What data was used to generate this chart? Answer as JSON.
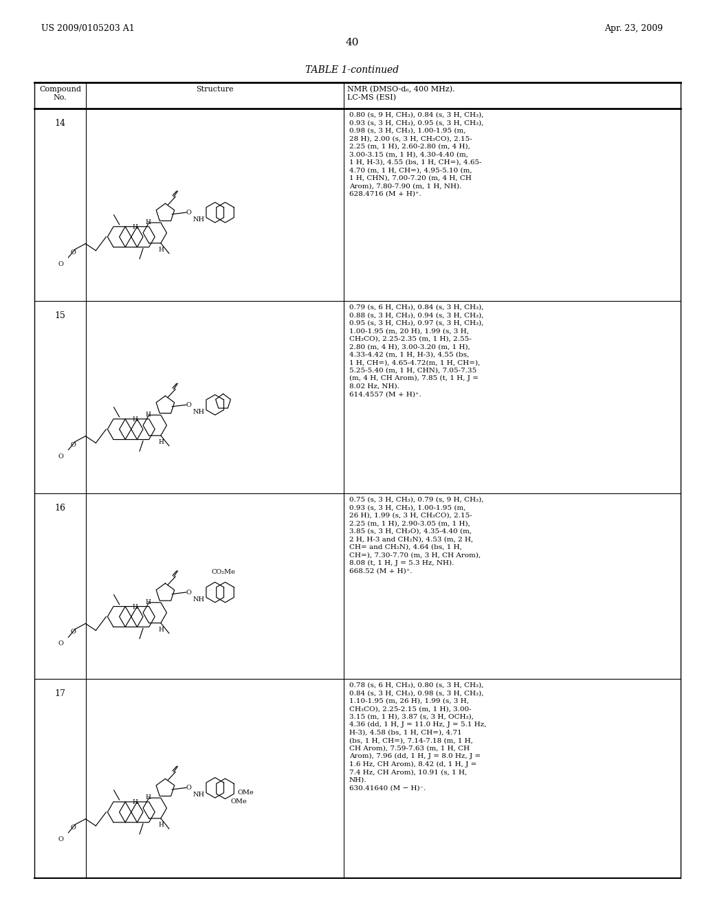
{
  "background_color": "#ffffff",
  "page_number": "40",
  "left_header": "US 2009/0105203 A1",
  "right_header": "Apr. 23, 2009",
  "table_title": "TABLE 1-continued",
  "col_headers": [
    "Compound\nNo.",
    "Structure",
    "NMR (DMSO-d₆, 400 MHz).\nLC-MS (ESI)"
  ],
  "rows": [
    {
      "compound_no": "14",
      "nmr_text": "0.80 (s, 9 H, CH₃), 0.84 (s, 3 H, CH₃),\n0.93 (s, 3 H, CH₃), 0.95 (s, 3 H, CH₃),\n0.98 (s, 3 H, CH₃), 1.00-1.95 (m,\n28 H), 2.00 (s, 3 H, CH₃CO), 2.15-\n2.25 (m, 1 H), 2.60-2.80 (m, 4 H),\n3.00-3.15 (m, 1 H), 4.30-4.40 (m,\n1 H, H-3), 4.55 (bs, 1 H, CH=), 4.65-\n4.70 (m, 1 H, CH=), 4.95-5.10 (m,\n1 H, CHN), 7.00-7.20 (m, 4 H, CH\nArom), 7.80-7.90 (m, 1 H, NH).\n628.4716 (M + H)⁺."
    },
    {
      "compound_no": "15",
      "nmr_text": "0.79 (s, 6 H, CH₃), 0.84 (s, 3 H, CH₃),\n0.88 (s, 3 H, CH₃), 0.94 (s, 3 H, CH₃),\n0.95 (s, 3 H, CH₃), 0.97 (s, 3 H, CH₃),\n1.00-1.95 (m, 20 H), 1.99 (s, 3 H,\nCH₃CO), 2.25-2.35 (m, 1 H), 2.55-\n2.80 (m, 4 H), 3.00-3.20 (m, 1 H),\n4.33-4.42 (m, 1 H, H-3), 4.55 (bs,\n1 H, CH=), 4.65-4.72(m, 1 H, CH=),\n5.25-5.40 (m, 1 H, CHN), 7.05-7.35\n(m, 4 H, CH Arom), 7.85 (t, 1 H, J =\n8.02 Hz, NH).\n614.4557 (M + H)⁺."
    },
    {
      "compound_no": "16",
      "nmr_text": "0.75 (s, 3 H, CH₃), 0.79 (s, 9 H, CH₃),\n0.93 (s, 3 H, CH₃), 1.00-1.95 (m,\n26 H), 1.99 (s, 3 H, CH₃CO), 2.15-\n2.25 (m, 1 H), 2.90-3.05 (m, 1 H),\n3.85 (s, 3 H, CH₃O), 4.35-4.40 (m,\n2 H, H-3 and CH₂N), 4.53 (m, 2 H,\nCH= and CH₂N), 4.64 (bs, 1 H,\nCH=), 7.30-7.70 (m, 3 H, CH Arom),\n8.08 (t, 1 H, J = 5.3 Hz, NH).\n668.52 (M + H)⁺."
    },
    {
      "compound_no": "17",
      "nmr_text": "0.78 (s, 6 H, CH₃), 0.80 (s, 3 H, CH₃),\n0.84 (s, 3 H, CH₃), 0.98 (s, 3 H, CH₃),\n1.10-1.95 (m, 26 H), 1.99 (s, 3 H,\nCH₃CO), 2.25-2.15 (m, 1 H), 3.00-\n3.15 (m, 1 H), 3.87 (s, 3 H, OCH₃),\n4.36 (dd, 1 H, J = 11.0 Hz, J = 5.1 Hz,\nH-3), 4.58 (bs, 1 H, CH=), 4.71\n(bs, 1 H, CH=), 7.14-7.18 (m, 1 H,\nCH Arom), 7.59-7.63 (m, 1 H, CH\nArom), 7.96 (dd, 1 H, J = 8.0 Hz, J =\n1.6 Hz, CH Arom), 8.42 (d, 1 H, J =\n7.4 Hz, CH Arom), 10.91 (s, 1 H,\nNH).\n630.41640 (M − H)⁻."
    }
  ]
}
